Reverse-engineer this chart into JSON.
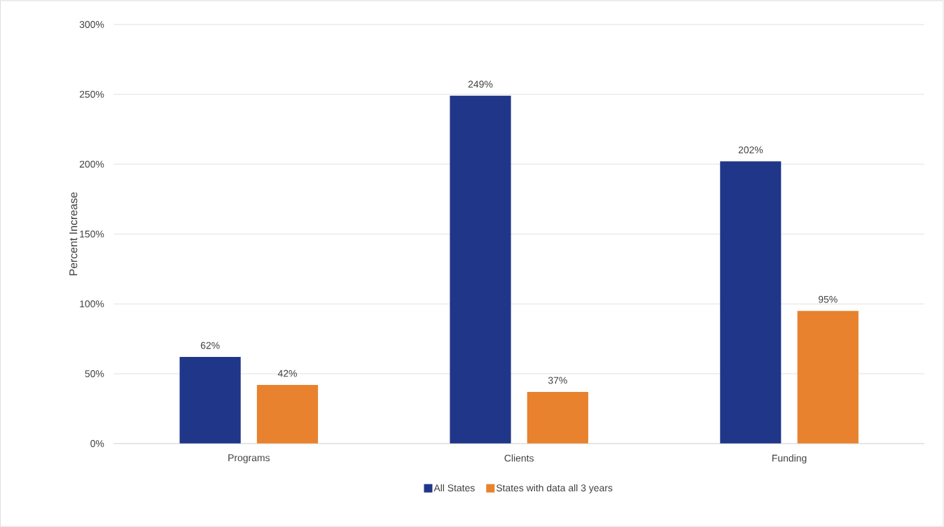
{
  "chart_data": {
    "type": "bar",
    "ylabel": "Percent Increase",
    "categories": [
      "Programs",
      "Clients",
      "Funding"
    ],
    "series": [
      {
        "name": "All States",
        "color": "#203689",
        "values": [
          62,
          249,
          202
        ],
        "value_labels": [
          "62%",
          "249%",
          "202%"
        ]
      },
      {
        "name": "States with data all 3 years",
        "color": "#e8822e",
        "values": [
          42,
          37,
          95
        ],
        "value_labels": [
          "42%",
          "37%",
          "95%"
        ]
      }
    ],
    "ylim": [
      0,
      300
    ],
    "yticks": [
      {
        "value": 0,
        "label": "0%"
      },
      {
        "value": 50,
        "label": "50%"
      },
      {
        "value": 100,
        "label": "100%"
      },
      {
        "value": 150,
        "label": "150%"
      },
      {
        "value": 200,
        "label": "200%"
      },
      {
        "value": 250,
        "label": "250%"
      },
      {
        "value": 300,
        "label": "300%"
      }
    ],
    "grid": "y",
    "legend": "bottom"
  }
}
